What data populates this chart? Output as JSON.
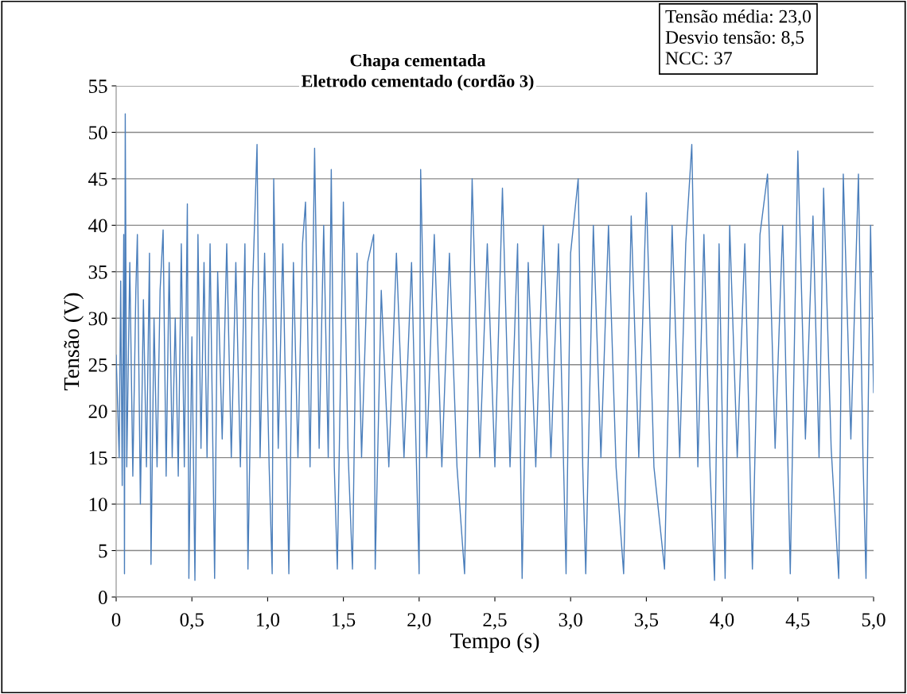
{
  "chart_data": {
    "type": "line",
    "title": "Chapa cementada",
    "subtitle": "Eletrodo cementado (cordão 3)",
    "xlabel": "Tempo (s)",
    "ylabel": "Tensão (V)",
    "annotations": [
      "Tensão média: 23,0",
      "Desvio tensão: 8,5",
      "NCC: 37"
    ],
    "xlim": [
      0,
      5
    ],
    "xticks": [
      0,
      {
        "value": 0.5,
        "label": "0,5"
      },
      {
        "value": 1,
        "label": "1,0"
      },
      {
        "value": 1.5,
        "label": "1,5"
      },
      {
        "value": 2,
        "label": "2,0"
      },
      {
        "value": 2.5,
        "label": "2,5"
      },
      {
        "value": 3,
        "label": "3,0"
      },
      {
        "value": 3.5,
        "label": "3,5"
      },
      {
        "value": 4,
        "label": "4,0"
      },
      {
        "value": 4.5,
        "label": "4,5"
      },
      {
        "value": 5,
        "label": "5,0"
      }
    ],
    "ylim": [
      0,
      55
    ],
    "yticks": [
      0,
      5,
      10,
      15,
      20,
      25,
      30,
      35,
      40,
      45,
      50,
      55
    ],
    "grid": "y",
    "legend": false,
    "marker": "none",
    "line_style": "solid",
    "series": [
      {
        "color": "#4a7ebb",
        "x": [
          0,
          0.02,
          0.03,
          0.04,
          0.05,
          0.055,
          0.06,
          0.07,
          0.09,
          0.11,
          0.13,
          0.14,
          0.16,
          0.18,
          0.2,
          0.22,
          0.23,
          0.25,
          0.27,
          0.29,
          0.31,
          0.33,
          0.35,
          0.37,
          0.39,
          0.41,
          0.43,
          0.45,
          0.47,
          0.48,
          0.5,
          0.52,
          0.54,
          0.56,
          0.58,
          0.6,
          0.62,
          0.65,
          0.67,
          0.7,
          0.73,
          0.76,
          0.79,
          0.82,
          0.85,
          0.87,
          0.9,
          0.93,
          0.95,
          0.98,
          1.01,
          1.03,
          1.04,
          1.07,
          1.1,
          1.14,
          1.17,
          1.2,
          1.23,
          1.25,
          1.28,
          1.31,
          1.34,
          1.37,
          1.4,
          1.42,
          1.44,
          1.46,
          1.5,
          1.53,
          1.56,
          1.59,
          1.62,
          1.66,
          1.7,
          1.71,
          1.75,
          1.8,
          1.85,
          1.9,
          1.95,
          2.0,
          2.01,
          2.05,
          2.1,
          2.15,
          2.2,
          2.25,
          2.3,
          2.35,
          2.4,
          2.45,
          2.5,
          2.55,
          2.6,
          2.65,
          2.68,
          2.72,
          2.77,
          2.82,
          2.87,
          2.92,
          2.97,
          3.0,
          3.05,
          3.08,
          3.1,
          3.15,
          3.2,
          3.25,
          3.3,
          3.35,
          3.4,
          3.45,
          3.5,
          3.55,
          3.62,
          3.67,
          3.72,
          3.76,
          3.8,
          3.84,
          3.88,
          3.92,
          3.95,
          3.98,
          4.02,
          4.05,
          4.1,
          4.15,
          4.2,
          4.25,
          4.3,
          4.35,
          4.4,
          4.45,
          4.5,
          4.55,
          4.6,
          4.64,
          4.67,
          4.72,
          4.77,
          4.8,
          4.85,
          4.9,
          4.93,
          4.95,
          4.98,
          5.0
        ],
        "values": [
          26,
          15,
          34,
          12,
          39,
          2.5,
          52,
          14,
          36,
          13,
          33,
          39,
          10,
          32,
          14,
          37,
          3.5,
          30,
          14,
          33,
          39.5,
          13,
          36,
          15,
          30,
          13,
          38,
          14,
          42.3,
          2,
          28,
          1.8,
          39,
          16,
          36,
          15,
          38,
          2,
          35,
          17,
          38,
          15,
          36,
          14,
          38,
          3,
          33,
          48.7,
          15,
          37,
          14,
          2.5,
          45,
          16,
          38,
          2.5,
          36,
          15,
          38,
          42.5,
          14,
          48.3,
          16,
          40,
          15,
          46,
          14,
          3,
          42.5,
          16,
          3,
          37,
          15,
          36,
          39,
          3,
          33,
          14,
          37,
          15,
          36,
          2.5,
          46,
          15,
          39,
          14,
          37,
          14,
          2.5,
          45,
          15,
          38,
          14,
          44,
          14,
          38,
          2,
          36,
          14,
          40,
          15,
          38,
          2.5,
          37,
          45,
          14,
          2.5,
          40,
          15,
          40,
          14,
          2.5,
          41,
          15,
          43.5,
          14,
          3,
          40,
          15,
          38,
          48.7,
          14,
          39,
          14,
          1.8,
          38,
          2,
          40,
          15,
          38,
          3,
          39,
          45.5,
          16,
          40,
          2.5,
          48,
          17,
          41,
          15,
          44,
          16,
          2,
          45.5,
          17,
          45.5,
          15,
          2,
          40,
          22
        ]
      }
    ]
  }
}
